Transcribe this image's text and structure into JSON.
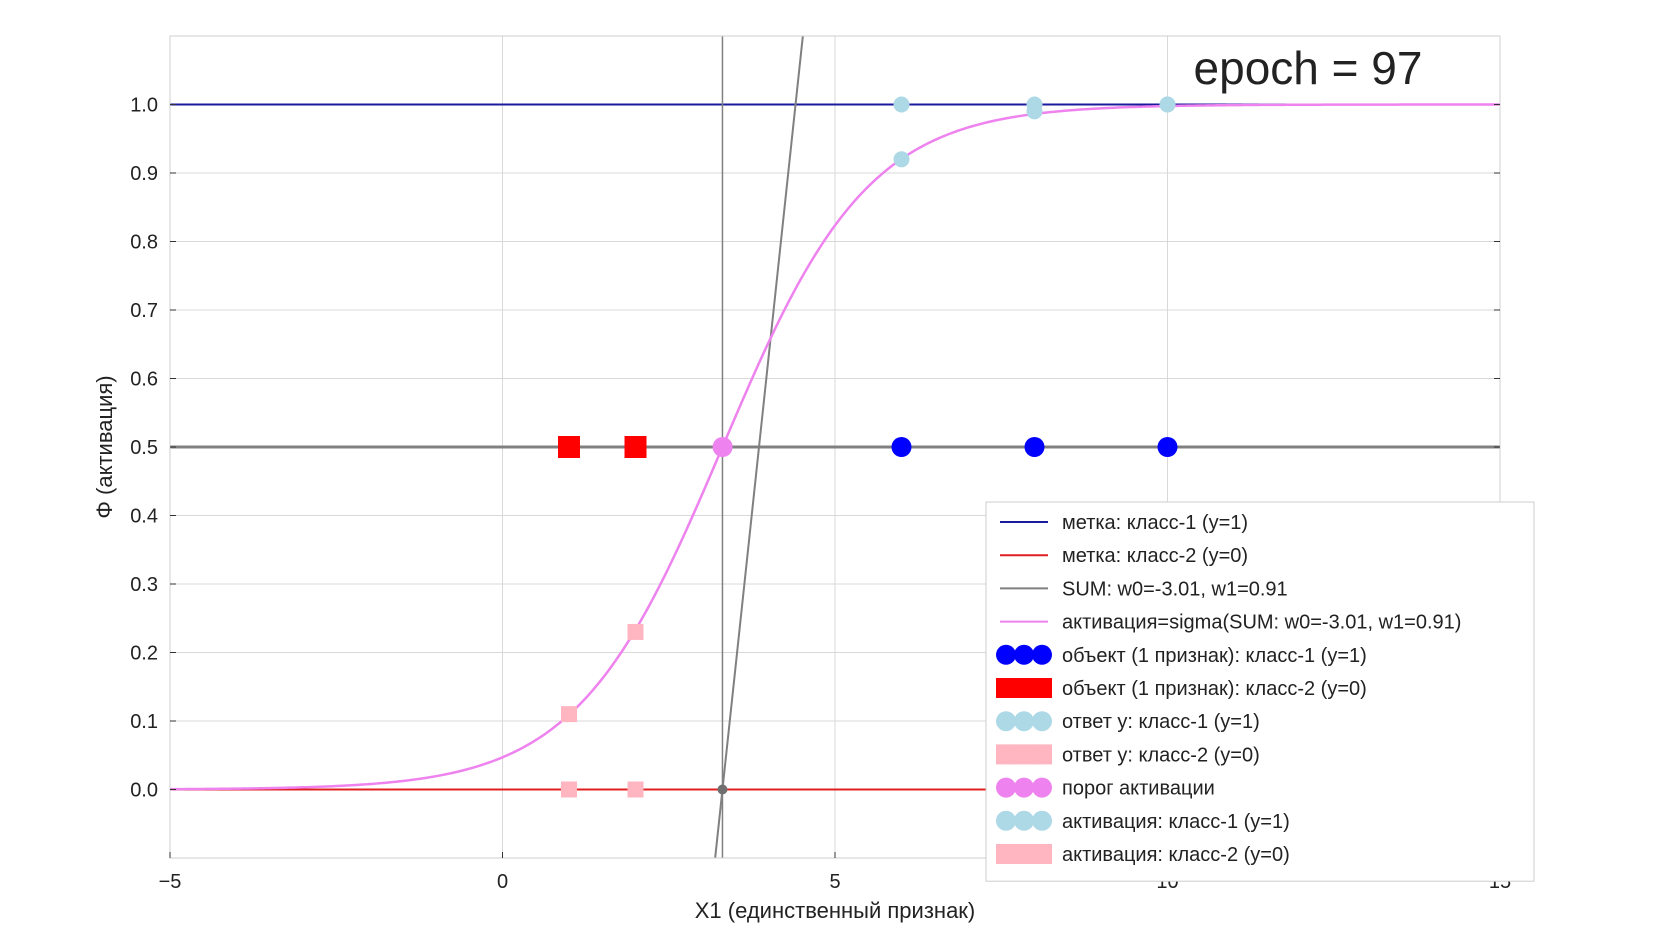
{
  "chart_data": {
    "type": "line",
    "annotation": "epoch = 97",
    "xlabel": "X1 (единственный признак)",
    "ylabel": "Φ (активация)",
    "xlim": [
      -5,
      15
    ],
    "ylim": [
      -0.1,
      1.1
    ],
    "x_ticks": [
      "−5",
      "0",
      "5",
      "10",
      "15"
    ],
    "x_tick_values": [
      -5,
      0,
      5,
      10,
      15
    ],
    "y_ticks": [
      "0.0",
      "0.1",
      "0.2",
      "0.3",
      "0.4",
      "0.5",
      "0.6",
      "0.7",
      "0.8",
      "0.9",
      "1.0"
    ],
    "y_tick_values": [
      0,
      0.1,
      0.2,
      0.3,
      0.4,
      0.5,
      0.6,
      0.7,
      0.8,
      0.9,
      1.0
    ],
    "grid": true,
    "legend_position": "lower-right",
    "weights": {
      "w0": -3.01,
      "w1": 0.91
    },
    "lines": [
      {
        "id": "label_class1",
        "name": "метка: класс-1 (y=1)",
        "color": "#1a1a9c",
        "y": 1.0
      },
      {
        "id": "label_class2",
        "name": "метка: класс-2 (y=0)",
        "color": "#e02020",
        "y": 0.0
      },
      {
        "id": "sum",
        "name": "SUM: w0=-3.01, w1=0.91",
        "color": "#808080"
      },
      {
        "id": "activation",
        "name": "активация=sigma(SUM: w0=-3.01, w1=0.91)",
        "color": "#ee82ee"
      }
    ],
    "series": [
      {
        "id": "obj1",
        "name": "объект (1 признак): класс-1 (y=1)",
        "marker": "circle",
        "color": "#0000ff",
        "x": [
          6,
          8,
          10
        ],
        "y": [
          0.5,
          0.5,
          0.5
        ]
      },
      {
        "id": "obj2",
        "name": "объект (1 признак): класс-2 (y=0)",
        "marker": "square",
        "color": "#ff0000",
        "x": [
          1,
          2
        ],
        "y": [
          0.5,
          0.5
        ]
      },
      {
        "id": "ans1",
        "name": "ответ y: класс-1 (y=1)",
        "marker": "circle",
        "color": "#add8e6",
        "x": [
          6,
          8,
          10
        ],
        "y": [
          1.0,
          1.0,
          1.0
        ]
      },
      {
        "id": "ans2",
        "name": "ответ y: класс-2 (y=0)",
        "marker": "square",
        "color": "#ffb6c1",
        "x": [
          1,
          2
        ],
        "y": [
          0.0,
          0.0
        ]
      },
      {
        "id": "threshold",
        "name": "порог активации",
        "marker": "circle",
        "color": "#ee82ee",
        "x": [
          3.31
        ],
        "y": [
          0.5
        ]
      },
      {
        "id": "act1",
        "name": "активация: класс-1 (y=1)",
        "marker": "circle",
        "color": "#add8e6",
        "x": [
          6,
          8,
          10
        ],
        "y": [
          0.92,
          0.99,
          1.0
        ]
      },
      {
        "id": "act2",
        "name": "активация: класс-2 (y=0)",
        "marker": "square",
        "color": "#ffb6c1",
        "x": [
          1,
          2
        ],
        "y": [
          0.11,
          0.23
        ]
      }
    ]
  }
}
